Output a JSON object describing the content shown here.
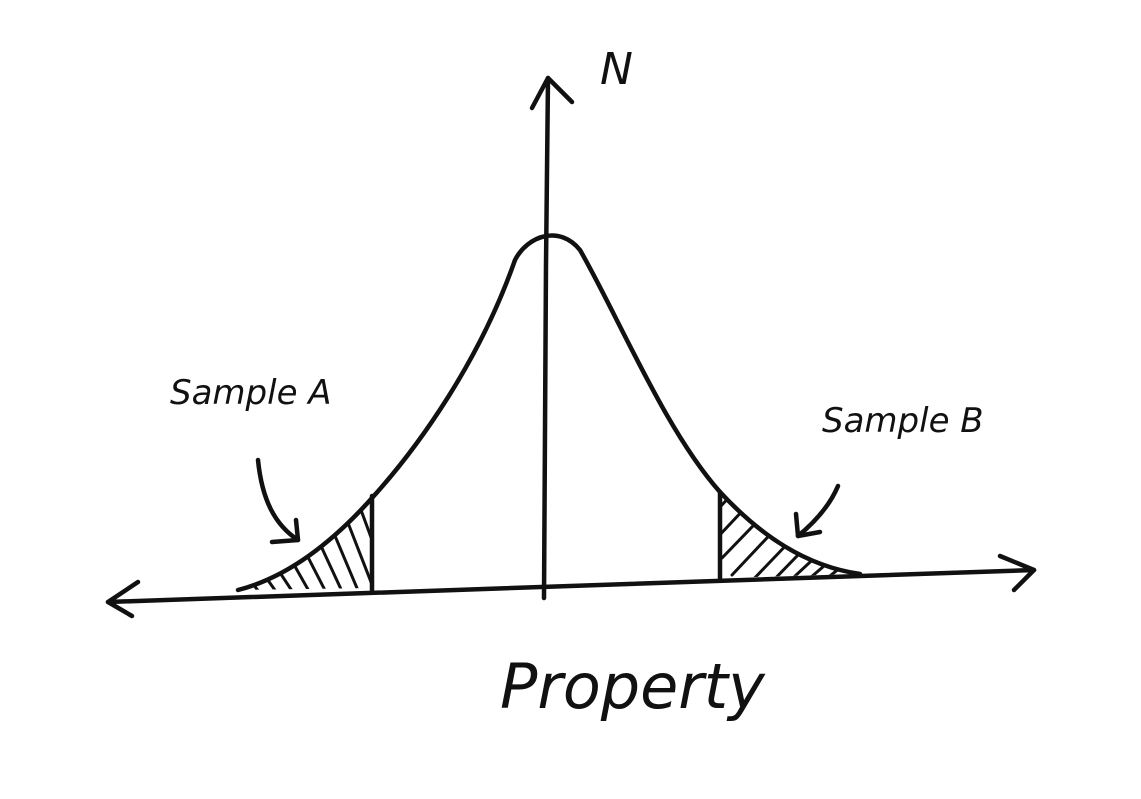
{
  "diagram": {
    "y_axis_label": "N",
    "x_axis_label": "Property",
    "regions": [
      {
        "id": "sample-a",
        "label": "Sample A",
        "tail": "left"
      },
      {
        "id": "sample-b",
        "label": "Sample B",
        "tail": "right"
      }
    ],
    "style": {
      "ink": "#111111",
      "background": "#ffffff",
      "fill": "hatched"
    }
  }
}
